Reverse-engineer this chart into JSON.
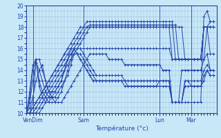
{
  "xlabel": "Température (°c)",
  "bg_color": "#c8e8f8",
  "grid_color": "#99bbdd",
  "line_color": "#2244aa",
  "marker_color": "#2244aa",
  "ylim": [
    10,
    20
  ],
  "xlim": [
    0,
    60
  ],
  "yticks": [
    10,
    11,
    12,
    13,
    14,
    15,
    16,
    17,
    18,
    19,
    20
  ],
  "xticklabels": [
    "VenDim",
    "Sam",
    "Lun",
    "Mar"
  ],
  "xtick_positions": [
    2,
    18,
    42,
    52
  ],
  "series": [
    [
      10,
      10,
      10,
      10,
      10,
      10.5,
      11,
      11.5,
      12,
      12.5,
      13,
      13.5,
      14,
      14.5,
      15,
      15.5,
      16,
      16.5,
      17,
      17.5,
      18,
      18,
      18,
      18,
      18,
      18,
      18,
      18,
      18,
      18,
      18,
      18,
      18,
      18,
      18,
      18,
      18,
      18,
      18,
      18,
      18,
      18,
      18,
      18,
      18,
      18,
      18,
      18,
      18,
      18,
      15,
      15,
      15,
      15,
      15,
      15,
      15,
      18,
      18,
      18
    ],
    [
      10,
      10,
      10,
      10,
      10.5,
      11,
      11.5,
      12,
      12.5,
      13,
      13.5,
      14,
      14.5,
      15,
      15.5,
      16,
      16.5,
      17,
      17.5,
      18,
      18.2,
      18.2,
      18.2,
      18.2,
      18.2,
      18.2,
      18.2,
      18.2,
      18.2,
      18.2,
      18.2,
      18.2,
      18.2,
      18.2,
      18.2,
      18.2,
      18.2,
      18.2,
      18.2,
      18.2,
      18.2,
      18.2,
      18.2,
      18.2,
      18.2,
      18.2,
      18.2,
      18.2,
      15,
      15,
      15,
      15,
      15,
      15,
      15,
      15,
      18,
      18,
      18,
      18
    ],
    [
      10,
      10,
      10,
      10.5,
      11,
      11.5,
      12,
      12.5,
      13,
      13.5,
      14,
      14.5,
      15,
      15.5,
      16,
      16.5,
      17,
      17.5,
      18,
      18.5,
      18.5,
      18.5,
      18.5,
      18.5,
      18.5,
      18.5,
      18.5,
      18.5,
      18.5,
      18.5,
      18.5,
      18.5,
      18.5,
      18.5,
      18.5,
      18.5,
      18.5,
      18.5,
      18.5,
      18.5,
      18.5,
      18.5,
      18.5,
      18.5,
      18.5,
      18.5,
      18.5,
      15,
      15,
      15,
      15,
      15,
      15,
      15,
      15,
      15,
      18,
      18,
      18.5,
      18.5
    ],
    [
      10,
      10,
      10.5,
      11,
      11.5,
      12,
      12.5,
      13,
      13.5,
      14,
      14.5,
      15,
      15.5,
      16,
      16.5,
      17,
      17.5,
      18,
      18,
      18,
      18,
      18,
      18,
      18,
      18,
      18,
      18,
      18,
      18,
      18,
      18,
      18,
      18,
      18,
      18,
      18,
      18,
      18,
      18,
      18,
      18,
      18,
      18,
      18,
      18,
      18,
      15,
      15,
      15,
      15,
      15,
      15,
      15,
      15,
      15,
      15,
      18,
      18,
      18,
      18
    ],
    [
      10,
      10,
      10.5,
      11,
      11.5,
      12,
      12.5,
      13,
      13.5,
      14,
      14.5,
      15,
      15.5,
      16,
      16,
      16,
      16,
      16,
      16,
      16,
      16,
      16,
      16,
      16,
      16,
      16,
      16,
      16,
      16,
      16,
      16,
      16,
      16,
      16,
      16,
      16,
      16,
      16,
      16,
      16,
      16,
      16,
      16,
      16,
      16,
      16,
      15,
      15,
      15,
      15,
      15,
      15,
      15,
      15,
      15,
      15,
      18,
      18,
      15.5,
      15.5
    ],
    [
      10,
      10.5,
      11.5,
      13,
      14,
      14.5,
      13,
      12,
      11.5,
      11,
      11,
      11,
      11.5,
      12,
      12.5,
      13,
      13.5,
      14,
      14.5,
      15,
      15.5,
      15.5,
      15.5,
      15.5,
      15.5,
      15.5,
      15,
      15,
      15,
      15,
      15,
      14.5,
      14.5,
      14.5,
      14.5,
      14.5,
      14.5,
      14.5,
      14.5,
      14.5,
      14.5,
      14.5,
      14.5,
      14,
      14,
      14,
      11,
      11,
      11,
      14,
      14,
      14,
      14,
      14,
      14,
      14,
      15,
      15.5,
      14,
      14
    ],
    [
      10,
      11,
      13,
      14.7,
      14,
      13,
      12,
      11.5,
      11.5,
      11.5,
      12,
      12.5,
      13,
      13.5,
      14.5,
      15.5,
      15.5,
      15.5,
      15,
      14.5,
      14,
      13.5,
      13,
      13,
      13,
      13,
      13,
      13,
      13,
      13,
      13,
      13,
      12.5,
      12.5,
      12.5,
      12.5,
      12.5,
      12.5,
      12.5,
      12.5,
      12.5,
      12.5,
      13,
      13,
      13,
      13,
      11,
      11,
      11,
      11,
      13,
      13,
      13,
      13,
      13,
      13,
      14,
      14.5,
      14,
      14
    ],
    [
      10,
      11.5,
      14,
      15,
      13,
      12,
      11.5,
      11,
      11,
      11,
      11.5,
      12,
      13,
      14,
      15,
      16,
      16,
      16,
      15.5,
      15,
      14.5,
      14,
      13.5,
      13.5,
      13.5,
      13.5,
      13.5,
      13.5,
      13.5,
      13.5,
      13.5,
      13,
      13,
      13,
      13,
      13,
      13,
      13,
      13,
      13,
      13,
      13,
      13,
      13,
      13,
      13,
      11,
      11,
      11,
      11,
      13,
      13,
      12.5,
      12.5,
      12.5,
      12.5,
      13,
      14,
      13.5,
      13.5
    ],
    [
      10,
      12,
      14.5,
      15,
      12.5,
      11.5,
      11,
      11,
      11.5,
      12,
      12.5,
      13,
      14,
      15,
      16,
      16,
      15.5,
      15,
      14.5,
      14,
      13.5,
      13,
      13,
      13,
      13,
      13,
      13,
      13,
      13,
      13,
      13,
      12.5,
      12.5,
      12.5,
      12.5,
      12.5,
      12.5,
      12.5,
      12.5,
      12.5,
      12.5,
      12.5,
      12.5,
      12.5,
      12.5,
      12.5,
      11,
      11,
      11,
      11,
      12.5,
      12.5,
      12.5,
      12.5,
      12.5,
      12.5,
      13.5,
      14,
      13.5,
      13.5
    ],
    [
      10,
      10,
      11,
      15,
      15,
      14,
      13,
      12,
      12,
      12,
      12.5,
      13,
      14,
      15,
      15.5,
      16,
      15.5,
      15,
      14.5,
      14,
      13.5,
      13,
      13,
      13,
      13,
      13,
      13,
      13,
      13,
      13,
      13,
      13,
      13,
      13,
      13,
      13,
      13,
      13,
      13,
      13,
      13,
      13,
      13,
      13,
      13,
      13,
      11,
      11,
      11,
      11,
      11,
      11,
      11,
      11,
      11,
      11,
      19,
      19.5,
      18.5,
      18.5
    ]
  ]
}
